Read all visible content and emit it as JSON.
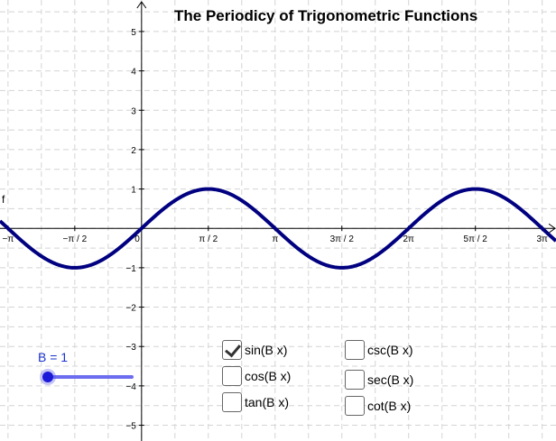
{
  "title": "The Periodicy of Trigonometric Functions",
  "function_label": "f",
  "slider": {
    "label": "B = 1",
    "value": 1
  },
  "checkboxes": [
    {
      "label": "sin(B x)",
      "checked": true
    },
    {
      "label": "cos(B x)",
      "checked": false
    },
    {
      "label": "tan(B x)",
      "checked": false
    },
    {
      "label": "csc(B x)",
      "checked": false
    },
    {
      "label": "sec(B x)",
      "checked": false
    },
    {
      "label": "cot(B x)",
      "checked": false
    }
  ],
  "colors": {
    "curve": "#000080",
    "slider": "#1a1ad8",
    "grid": "#d4d4d4",
    "axis": "#000000"
  },
  "chart_data": {
    "type": "line",
    "function": "sin(B x)",
    "xlim": [
      -3.33,
      9.75
    ],
    "ylim": [
      -5.4,
      5.8
    ],
    "x_ticks": [
      {
        "value": -3.14159,
        "label": "−π"
      },
      {
        "value": -1.5708,
        "label": "−π / 2"
      },
      {
        "value": 0,
        "label": "0"
      },
      {
        "value": 1.5708,
        "label": "π / 2"
      },
      {
        "value": 3.14159,
        "label": "π"
      },
      {
        "value": 4.71239,
        "label": "3π / 2"
      },
      {
        "value": 6.28319,
        "label": "2π"
      },
      {
        "value": 7.85398,
        "label": "5π / 2"
      },
      {
        "value": 9.42478,
        "label": "3π"
      }
    ],
    "y_ticks": [
      {
        "value": 5,
        "label": "5"
      },
      {
        "value": 4,
        "label": "4"
      },
      {
        "value": 3,
        "label": "3"
      },
      {
        "value": 2,
        "label": "2"
      },
      {
        "value": 1,
        "label": "1"
      },
      {
        "value": -1,
        "label": "−1"
      },
      {
        "value": -2,
        "label": "−2"
      },
      {
        "value": -3,
        "label": "−3"
      },
      {
        "value": -4,
        "label": "−4"
      },
      {
        "value": -5,
        "label": "−5"
      }
    ],
    "grid": true
  }
}
